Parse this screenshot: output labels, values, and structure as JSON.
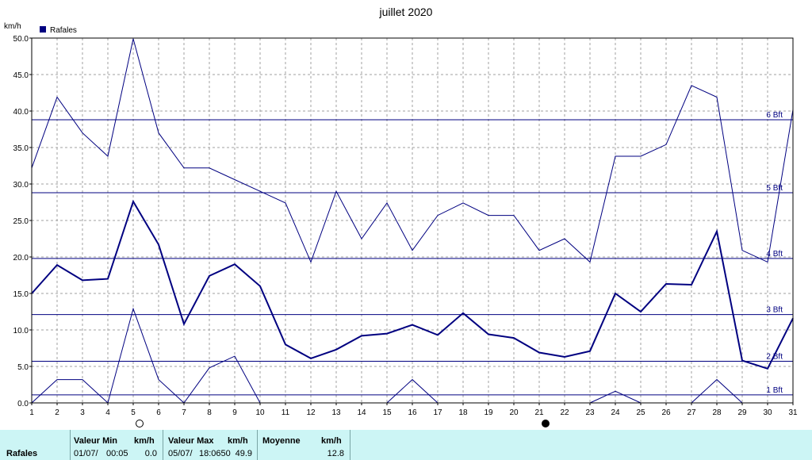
{
  "chart_data": {
    "type": "line",
    "title": "juillet 2020",
    "ylabel": "km/h",
    "legend": "Rafales",
    "legend_position": "top-left",
    "ylim": [
      0,
      50
    ],
    "yticks": [
      "0.0",
      "5.0",
      "10.0",
      "15.0",
      "20.0",
      "25.0",
      "30.0",
      "35.0",
      "40.0",
      "45.0",
      "50.0"
    ],
    "x": [
      1,
      2,
      3,
      4,
      5,
      6,
      7,
      8,
      9,
      10,
      11,
      12,
      13,
      14,
      15,
      16,
      17,
      18,
      19,
      20,
      21,
      22,
      23,
      24,
      25,
      26,
      27,
      28,
      29,
      30,
      31
    ],
    "grid": true,
    "series": [
      {
        "name": "Rafales",
        "role": "max",
        "values": [
          32.2,
          41.9,
          37.0,
          33.8,
          49.9,
          37.0,
          32.2,
          32.2,
          30.6,
          29.0,
          27.4,
          19.3,
          29.0,
          22.5,
          27.4,
          20.9,
          25.7,
          27.4,
          25.7,
          25.7,
          20.9,
          22.5,
          19.3,
          33.8,
          33.8,
          35.4,
          43.5,
          41.9,
          20.9,
          19.3,
          40.2
        ]
      },
      {
        "name": "Rafales",
        "role": "average",
        "values": [
          15.0,
          18.9,
          16.8,
          17.0,
          27.6,
          21.7,
          10.8,
          17.4,
          19.0,
          16.0,
          8.0,
          6.1,
          7.3,
          9.2,
          9.5,
          10.7,
          9.3,
          12.3,
          9.4,
          8.9,
          6.9,
          6.3,
          7.1,
          15.0,
          12.5,
          16.3,
          16.2,
          23.5,
          5.8,
          4.7,
          11.6
        ]
      },
      {
        "name": "Rafales",
        "role": "min",
        "values": [
          0.0,
          3.2,
          3.2,
          0.0,
          12.9,
          3.2,
          0.0,
          4.8,
          6.4,
          0.0,
          null,
          null,
          null,
          null,
          0.0,
          3.2,
          0.0,
          null,
          null,
          null,
          null,
          null,
          0.0,
          1.6,
          0.0,
          null,
          0.0,
          3.2,
          0.0,
          null,
          null
        ]
      }
    ],
    "beaufort": [
      {
        "label": "1 Bft",
        "value": 1.1
      },
      {
        "label": "2 Bft",
        "value": 5.7
      },
      {
        "label": "3 Bft",
        "value": 12.1
      },
      {
        "label": "4 Bft",
        "value": 19.8
      },
      {
        "label": "5 Bft",
        "value": 28.8
      },
      {
        "label": "6 Bft",
        "value": 38.8
      }
    ],
    "moon_markers": [
      {
        "day": 5,
        "phase": "full-moon"
      },
      {
        "day": 21,
        "phase": "new-moon"
      }
    ]
  },
  "colors": {
    "series": "#000080",
    "grid": "#a0a0a0",
    "footer_bg": "#ccf5f5"
  },
  "footer": {
    "row_label": "Rafales",
    "min_header": "Valeur Min",
    "min_unit": "km/h",
    "min_date": "01/07/",
    "min_time": "00:05",
    "min_value": "0.0",
    "max_header": "Valeur Max",
    "max_unit": "km/h",
    "max_date": "05/07/",
    "max_time": "18:0650",
    "max_value": "49.9",
    "avg_header": "Moyenne",
    "avg_unit": "km/h",
    "avg_value": "12.8"
  }
}
